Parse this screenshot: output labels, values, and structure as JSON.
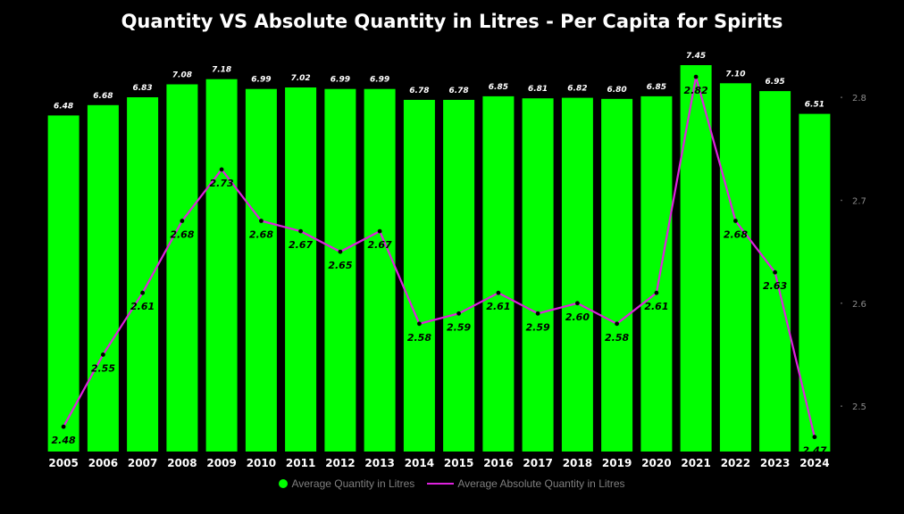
{
  "colors": {
    "background": "#000000",
    "bar": "#00ff00",
    "line": "#dd22dd",
    "marker": "#000000"
  },
  "chart_data": {
    "type": "bar",
    "title": "Quantity VS Absolute Quantity in Litres - Per Capita for Spirits",
    "categories": [
      "2005",
      "2006",
      "2007",
      "2008",
      "2009",
      "2010",
      "2011",
      "2012",
      "2013",
      "2014",
      "2015",
      "2016",
      "2017",
      "2018",
      "2019",
      "2020",
      "2021",
      "2022",
      "2023",
      "2024"
    ],
    "series": [
      {
        "name": "Average Quantity in Litres",
        "type": "bar",
        "axis": "left",
        "values": [
          6.48,
          6.68,
          6.83,
          7.08,
          7.18,
          6.99,
          7.02,
          6.99,
          6.99,
          6.78,
          6.78,
          6.85,
          6.81,
          6.82,
          6.8,
          6.85,
          7.45,
          7.1,
          6.95,
          6.51
        ],
        "labels": [
          "6.48",
          "6.68",
          "6.83",
          "7.08",
          "7.18",
          "6.99",
          "7.02",
          "6.99",
          "6.99",
          "6.78",
          "6.78",
          "6.85",
          "6.81",
          "6.82",
          "6.80",
          "6.85",
          "7.45",
          "7.10",
          "6.95",
          "6.51"
        ]
      },
      {
        "name": "Average Absolute Quantity in Litres",
        "type": "line",
        "axis": "right",
        "values": [
          2.48,
          2.55,
          2.61,
          2.68,
          2.73,
          2.68,
          2.67,
          2.65,
          2.67,
          2.58,
          2.59,
          2.61,
          2.59,
          2.6,
          2.58,
          2.61,
          2.82,
          2.68,
          2.63,
          2.47
        ],
        "labels": [
          "2.48",
          "2.55",
          "2.61",
          "2.68",
          "2.73",
          "2.68",
          "2.67",
          "2.65",
          "2.67",
          "2.58",
          "2.59",
          "2.61",
          "2.59",
          "2.60",
          "2.58",
          "2.61",
          "2.82",
          "2.68",
          "2.63",
          "2.47"
        ]
      }
    ],
    "y_left": {
      "visible": false,
      "range": [
        0,
        7.45
      ]
    },
    "y_right": {
      "ticks": [
        "2.5",
        "2.6",
        "2.7",
        "2.8"
      ],
      "tick_values": [
        2.5,
        2.6,
        2.7,
        2.8
      ],
      "range": [
        2.455,
        2.84
      ]
    },
    "grid": false,
    "legend": {
      "position": "bottom-center"
    }
  }
}
